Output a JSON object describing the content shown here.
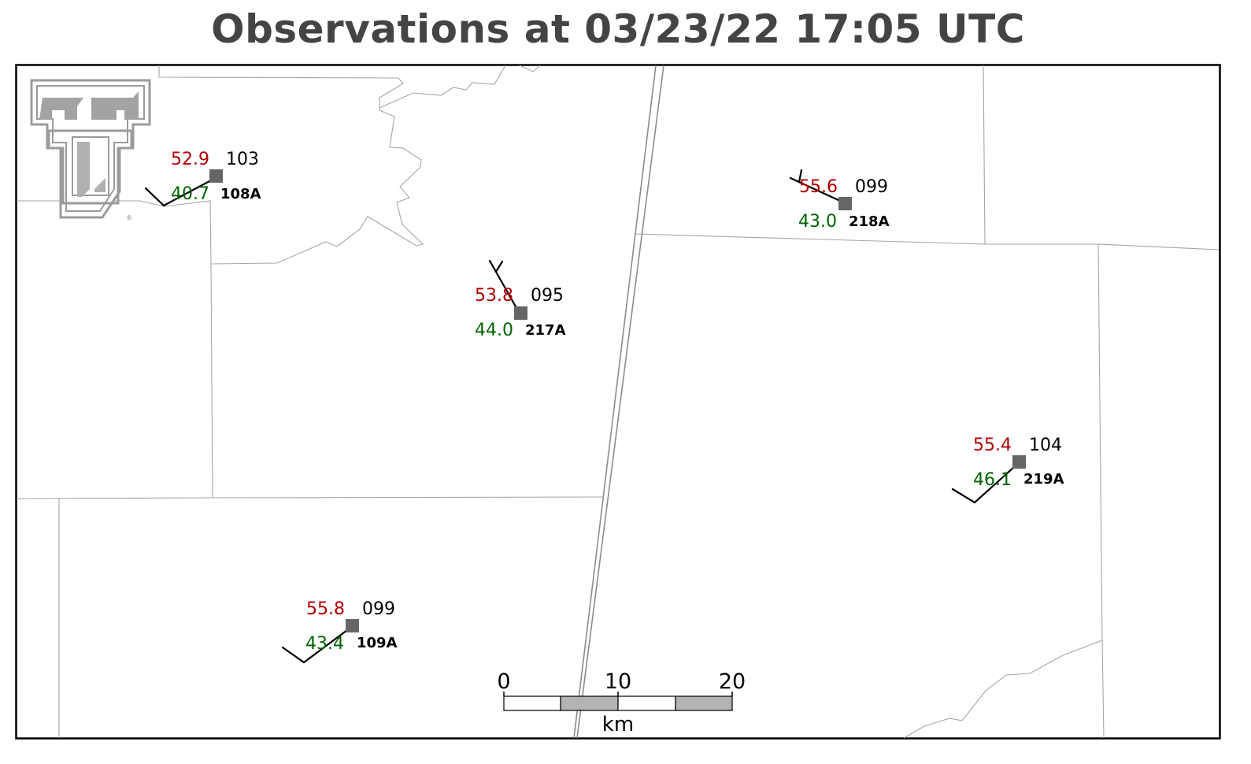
{
  "title": "Observations at 03/23/22 17:05 UTC",
  "stations": [
    {
      "id": "108A",
      "temp": "52.9",
      "dewpoint": "40.7",
      "pressure": "103"
    },
    {
      "id": "217A",
      "temp": "53.8",
      "dewpoint": "44.0",
      "pressure": "095"
    },
    {
      "id": "218A",
      "temp": "55.6",
      "dewpoint": "43.0",
      "pressure": "099"
    },
    {
      "id": "219A",
      "temp": "55.4",
      "dewpoint": "46.1",
      "pressure": "104"
    },
    {
      "id": "109A",
      "temp": "55.8",
      "dewpoint": "43.4",
      "pressure": "099"
    }
  ],
  "scale_bar": {
    "ticks": [
      "0",
      "10",
      "20"
    ],
    "unit": "km"
  },
  "logo": {
    "name": "Texas Tech Double T logo",
    "registered_mark": "®"
  },
  "colors": {
    "temperature": "#b00000",
    "dewpoint": "#006400",
    "station": "#666666",
    "title": "#444444"
  }
}
